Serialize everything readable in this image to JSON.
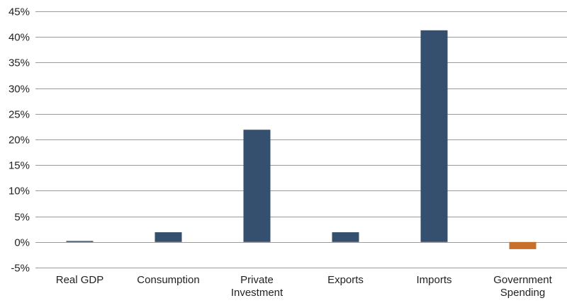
{
  "chart_data": {
    "type": "bar",
    "title": "",
    "xlabel": "",
    "ylabel": "",
    "categories": [
      [
        "Real GDP"
      ],
      [
        "Consumption"
      ],
      [
        "Private",
        "Investment"
      ],
      [
        "Exports"
      ],
      [
        "Imports"
      ],
      [
        "Government",
        "Spending"
      ]
    ],
    "values": [
      0.2,
      1.9,
      21.9,
      1.9,
      41.3,
      -1.4
    ],
    "ylim": [
      -5,
      45
    ],
    "yticks": [
      -5,
      0,
      5,
      10,
      15,
      20,
      25,
      30,
      35,
      40,
      45
    ],
    "ytick_labels": [
      "-5%",
      "0%",
      "5%",
      "10%",
      "15%",
      "20%",
      "25%",
      "30%",
      "35%",
      "40%",
      "45%"
    ],
    "grid": true,
    "legend": "none",
    "colors": {
      "positive": "#34506e",
      "negative": "#c8702b",
      "grid": "#9a9a9a",
      "text": "#222222"
    }
  }
}
